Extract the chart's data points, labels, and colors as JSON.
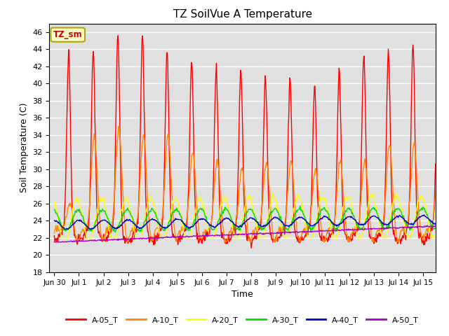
{
  "title": "TZ SoilVue A Temperature",
  "ylabel": "Soil Temperature (C)",
  "xlabel": "Time",
  "ylim": [
    18,
    47
  ],
  "yticks": [
    18,
    20,
    22,
    24,
    26,
    28,
    30,
    32,
    34,
    36,
    38,
    40,
    42,
    44,
    46
  ],
  "bg_color": "#e0e0e0",
  "annotation_text": "TZ_sm",
  "annotation_bg": "#ffffcc",
  "annotation_border": "#aaaa00",
  "annotation_text_color": "#cc0000",
  "series_colors": {
    "A-05_T": "#ff0000",
    "A-10_T": "#ff8800",
    "A-20_T": "#ffff00",
    "A-30_T": "#00dd00",
    "A-40_T": "#0000cc",
    "A-50_T": "#aa00cc"
  },
  "xtick_labels": [
    "Jun 30",
    "Jul 1",
    "Jul 2",
    "Jul 3",
    "Jul 4",
    "Jul 5",
    "Jul 6",
    "Jul 7",
    "Jul 8",
    "Jul 9",
    "Jul 10",
    "Jul 11",
    "Jul 12",
    "Jul 13",
    "Jul 14",
    "Jul 15"
  ],
  "xtick_positions": [
    0,
    1,
    2,
    3,
    4,
    5,
    6,
    7,
    8,
    9,
    10,
    11,
    12,
    13,
    14,
    15
  ]
}
